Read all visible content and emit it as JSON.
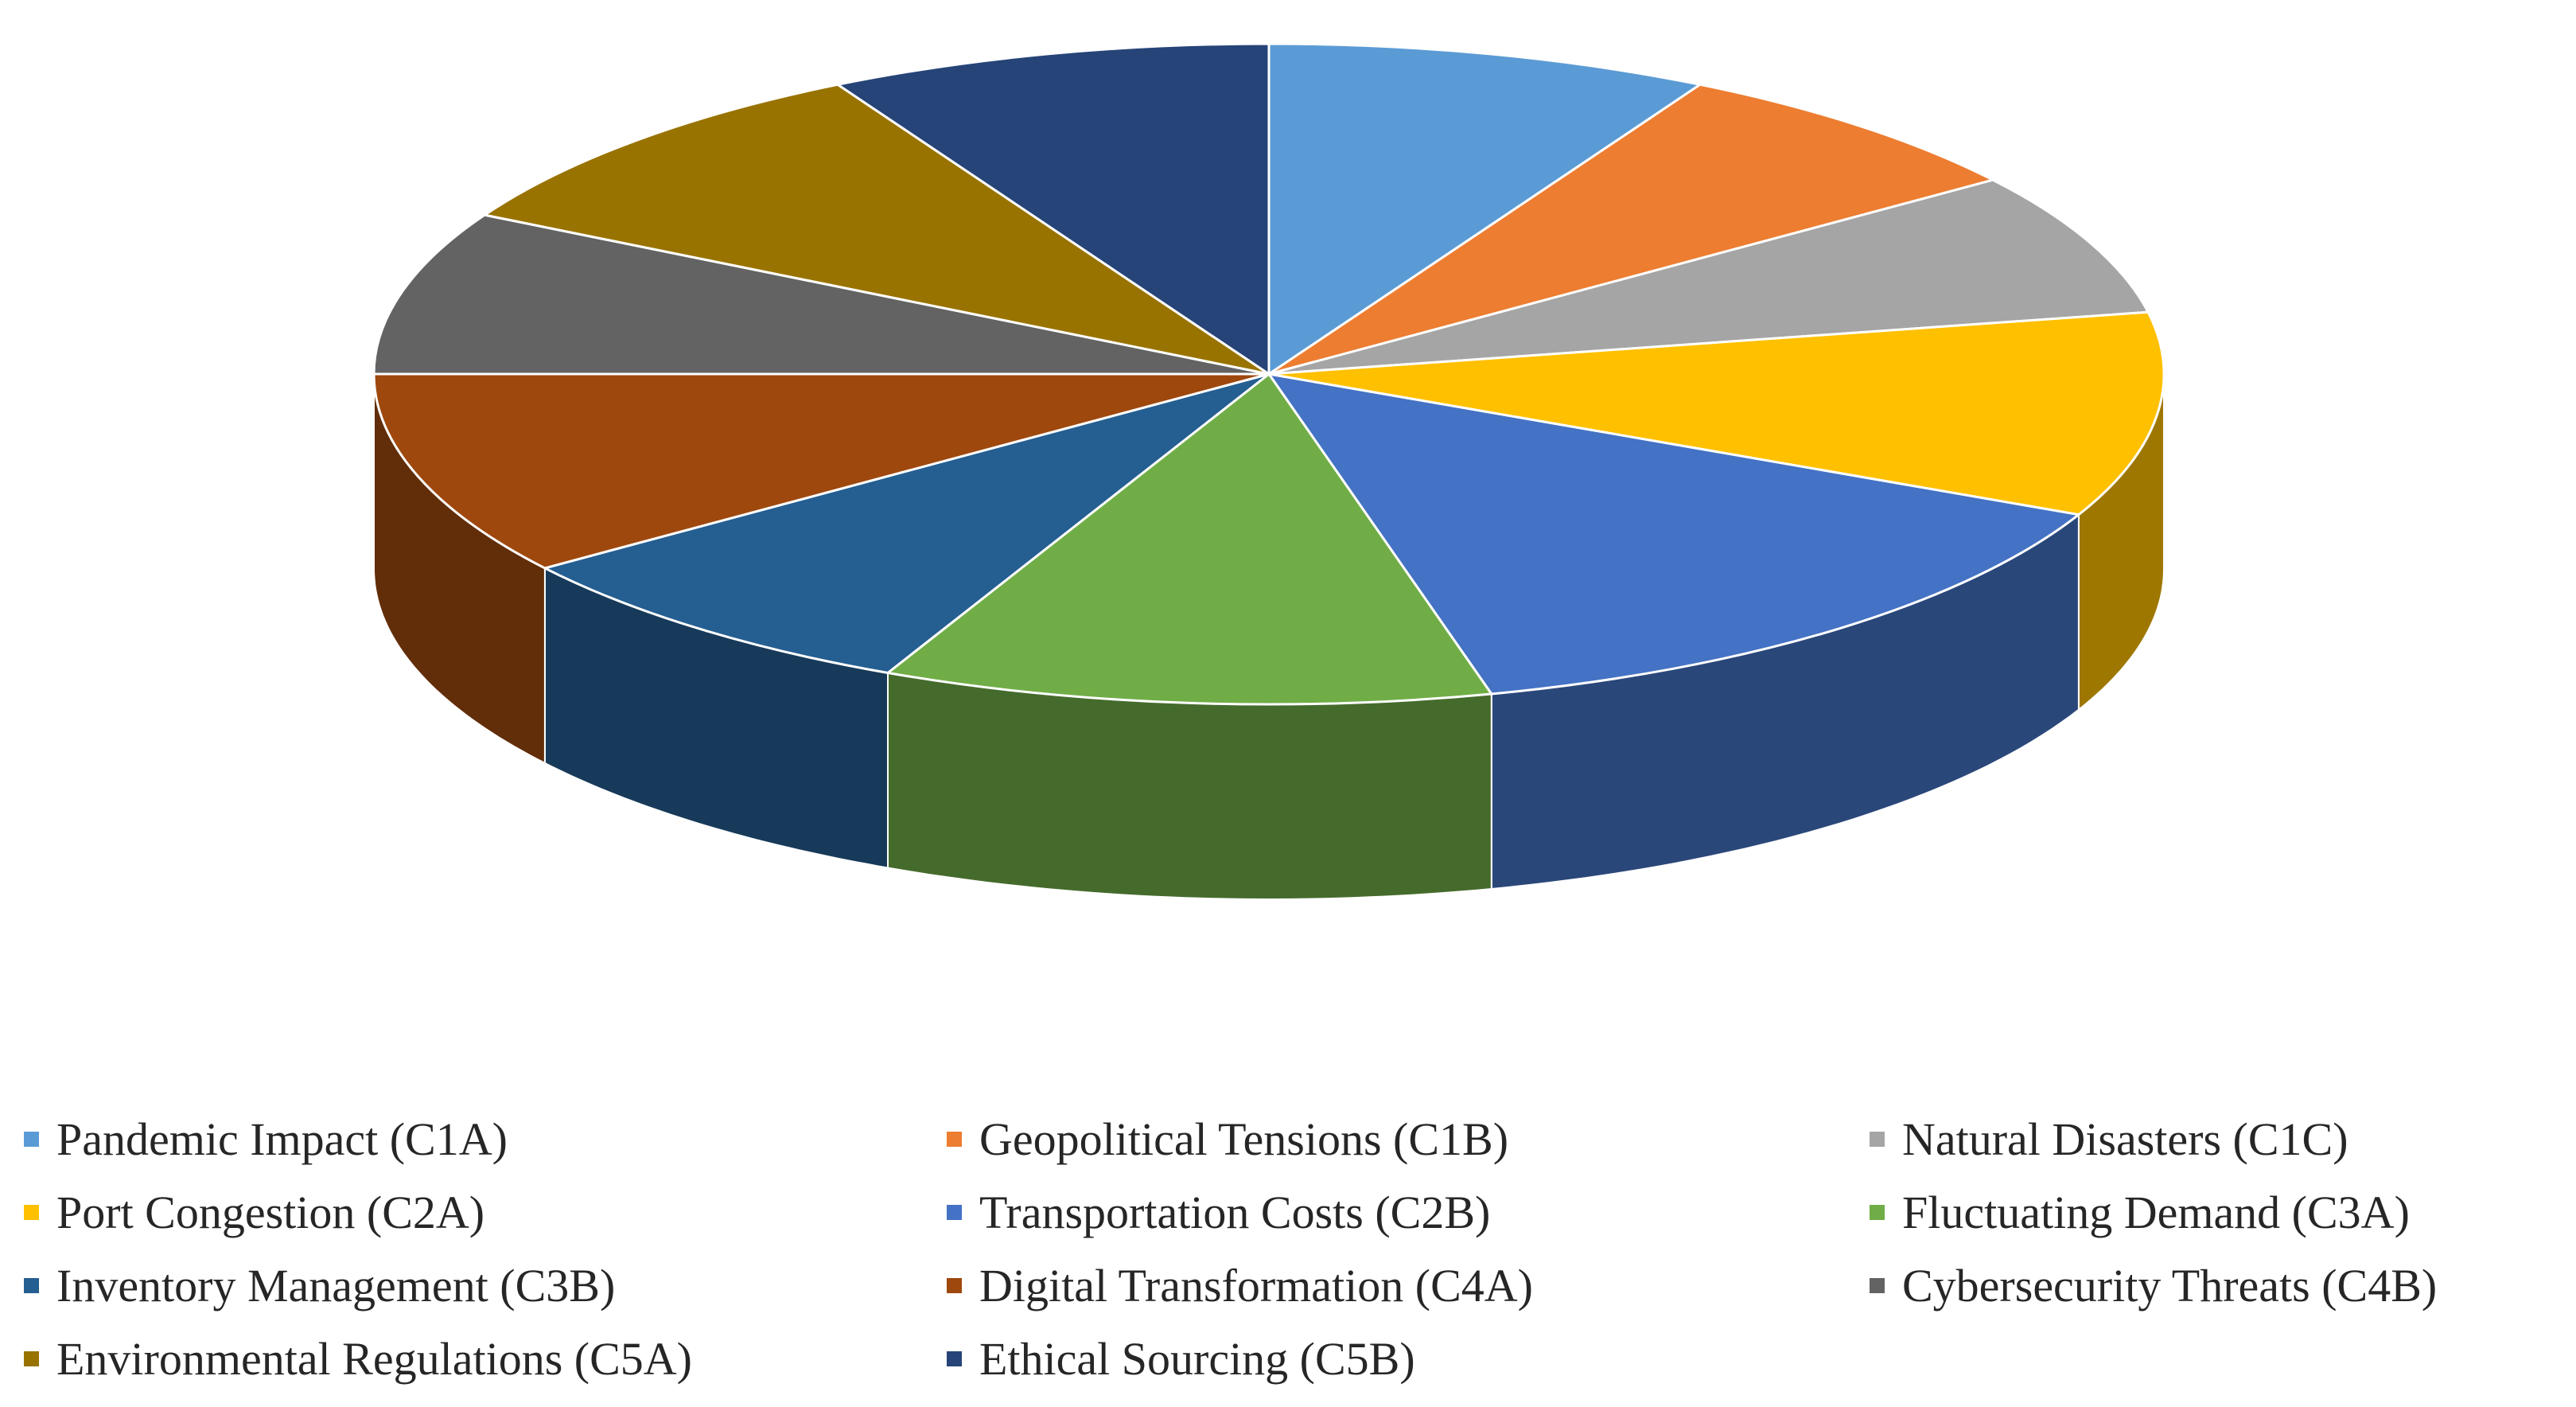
{
  "chart_data": {
    "type": "pie",
    "style": "3d",
    "legend_position": "bottom",
    "slices": [
      {
        "label": "Pandemic Impact (C1A)",
        "value": 8,
        "color": "#5b9bd5"
      },
      {
        "label": "Geopolitical Tensions (C1B)",
        "value": 7,
        "color": "#ed7d31"
      },
      {
        "label": "Natural Disasters (C1C)",
        "value": 7,
        "color": "#a5a5a5"
      },
      {
        "label": "Port Congestion (C2A)",
        "value": 10,
        "color": "#ffc000"
      },
      {
        "label": "Transportation Costs (C2B)",
        "value": 14,
        "color": "#4472c4"
      },
      {
        "label": "Fluctuating Demand (C3A)",
        "value": 11,
        "color": "#70ad47"
      },
      {
        "label": "Inventory Management (C3B)",
        "value": 8,
        "color": "#255e91"
      },
      {
        "label": "Digital Transformation (C4A)",
        "value": 10,
        "color": "#9e480e"
      },
      {
        "label": "Cybersecurity Threats (C4B)",
        "value": 8,
        "color": "#636363"
      },
      {
        "label": "Environmental Regulations (C5A)",
        "value": 9,
        "color": "#997300"
      },
      {
        "label": "Ethical Sourcing (C5B)",
        "value": 8,
        "color": "#264478"
      }
    ]
  }
}
